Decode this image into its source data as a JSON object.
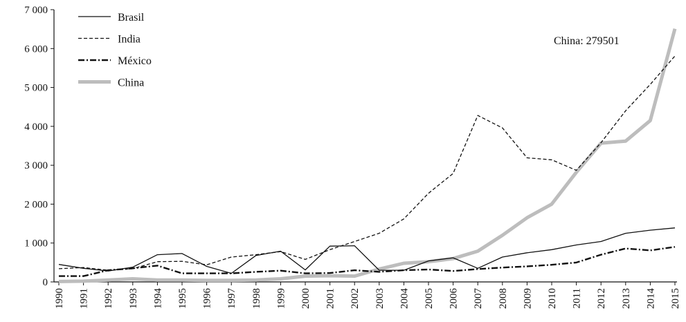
{
  "chart_data": {
    "type": "line",
    "title": "",
    "xlabel": "",
    "ylabel": "",
    "x": [
      1990,
      1991,
      1992,
      1993,
      1994,
      1995,
      1996,
      1997,
      1998,
      1999,
      2000,
      2001,
      2002,
      2003,
      2004,
      2005,
      2006,
      2007,
      2008,
      2009,
      2010,
      2011,
      2012,
      2013,
      2014,
      2015
    ],
    "x_tick_labels": [
      "1990",
      "1991",
      "1992",
      "1993",
      "1994",
      "1995",
      "1996",
      "1997",
      "1998",
      "1999",
      "2000",
      "2001",
      "2002",
      "2003",
      "2004",
      "2005",
      "2006",
      "2007",
      "2008",
      "2009",
      "2010",
      "2011",
      "2012",
      "2013",
      "2014",
      "2015"
    ],
    "ylim": [
      0,
      7000
    ],
    "y_ticks": [
      0,
      1000,
      2000,
      3000,
      4000,
      5000,
      6000,
      7000
    ],
    "y_tick_labels": [
      "0",
      "1 000",
      "2 000",
      "3 000",
      "4 000",
      "5 000",
      "6 000",
      "7 000"
    ],
    "grid": false,
    "legend_position": "top-left",
    "annotation": "China: 279501",
    "series": [
      {
        "name": "Brasil",
        "style": "solid",
        "color": "#111111",
        "values": [
          450,
          350,
          280,
          380,
          700,
          730,
          400,
          220,
          680,
          790,
          310,
          920,
          930,
          300,
          300,
          540,
          620,
          350,
          640,
          750,
          830,
          950,
          1040,
          1250,
          1330,
          1390
        ]
      },
      {
        "name": "India",
        "style": "dashed",
        "color": "#111111",
        "values": [
          340,
          370,
          300,
          340,
          520,
          530,
          440,
          640,
          700,
          780,
          580,
          830,
          1040,
          1250,
          1620,
          2280,
          2790,
          4280,
          3960,
          3190,
          3140,
          2870,
          3580,
          4400,
          5080,
          5810
        ]
      },
      {
        "name": "México",
        "style": "dashdot",
        "color": "#111111",
        "values": [
          150,
          150,
          300,
          350,
          420,
          220,
          220,
          220,
          260,
          290,
          220,
          230,
          300,
          260,
          300,
          320,
          280,
          330,
          370,
          400,
          440,
          500,
          700,
          860,
          810,
          900
        ]
      },
      {
        "name": "China",
        "style": "thick",
        "color": "#bdbdbd",
        "values": [
          10,
          20,
          50,
          80,
          50,
          50,
          40,
          40,
          50,
          80,
          150,
          160,
          150,
          330,
          480,
          520,
          600,
          790,
          1200,
          1650,
          2000,
          2820,
          3570,
          3620,
          4150,
          6510
        ]
      }
    ]
  }
}
